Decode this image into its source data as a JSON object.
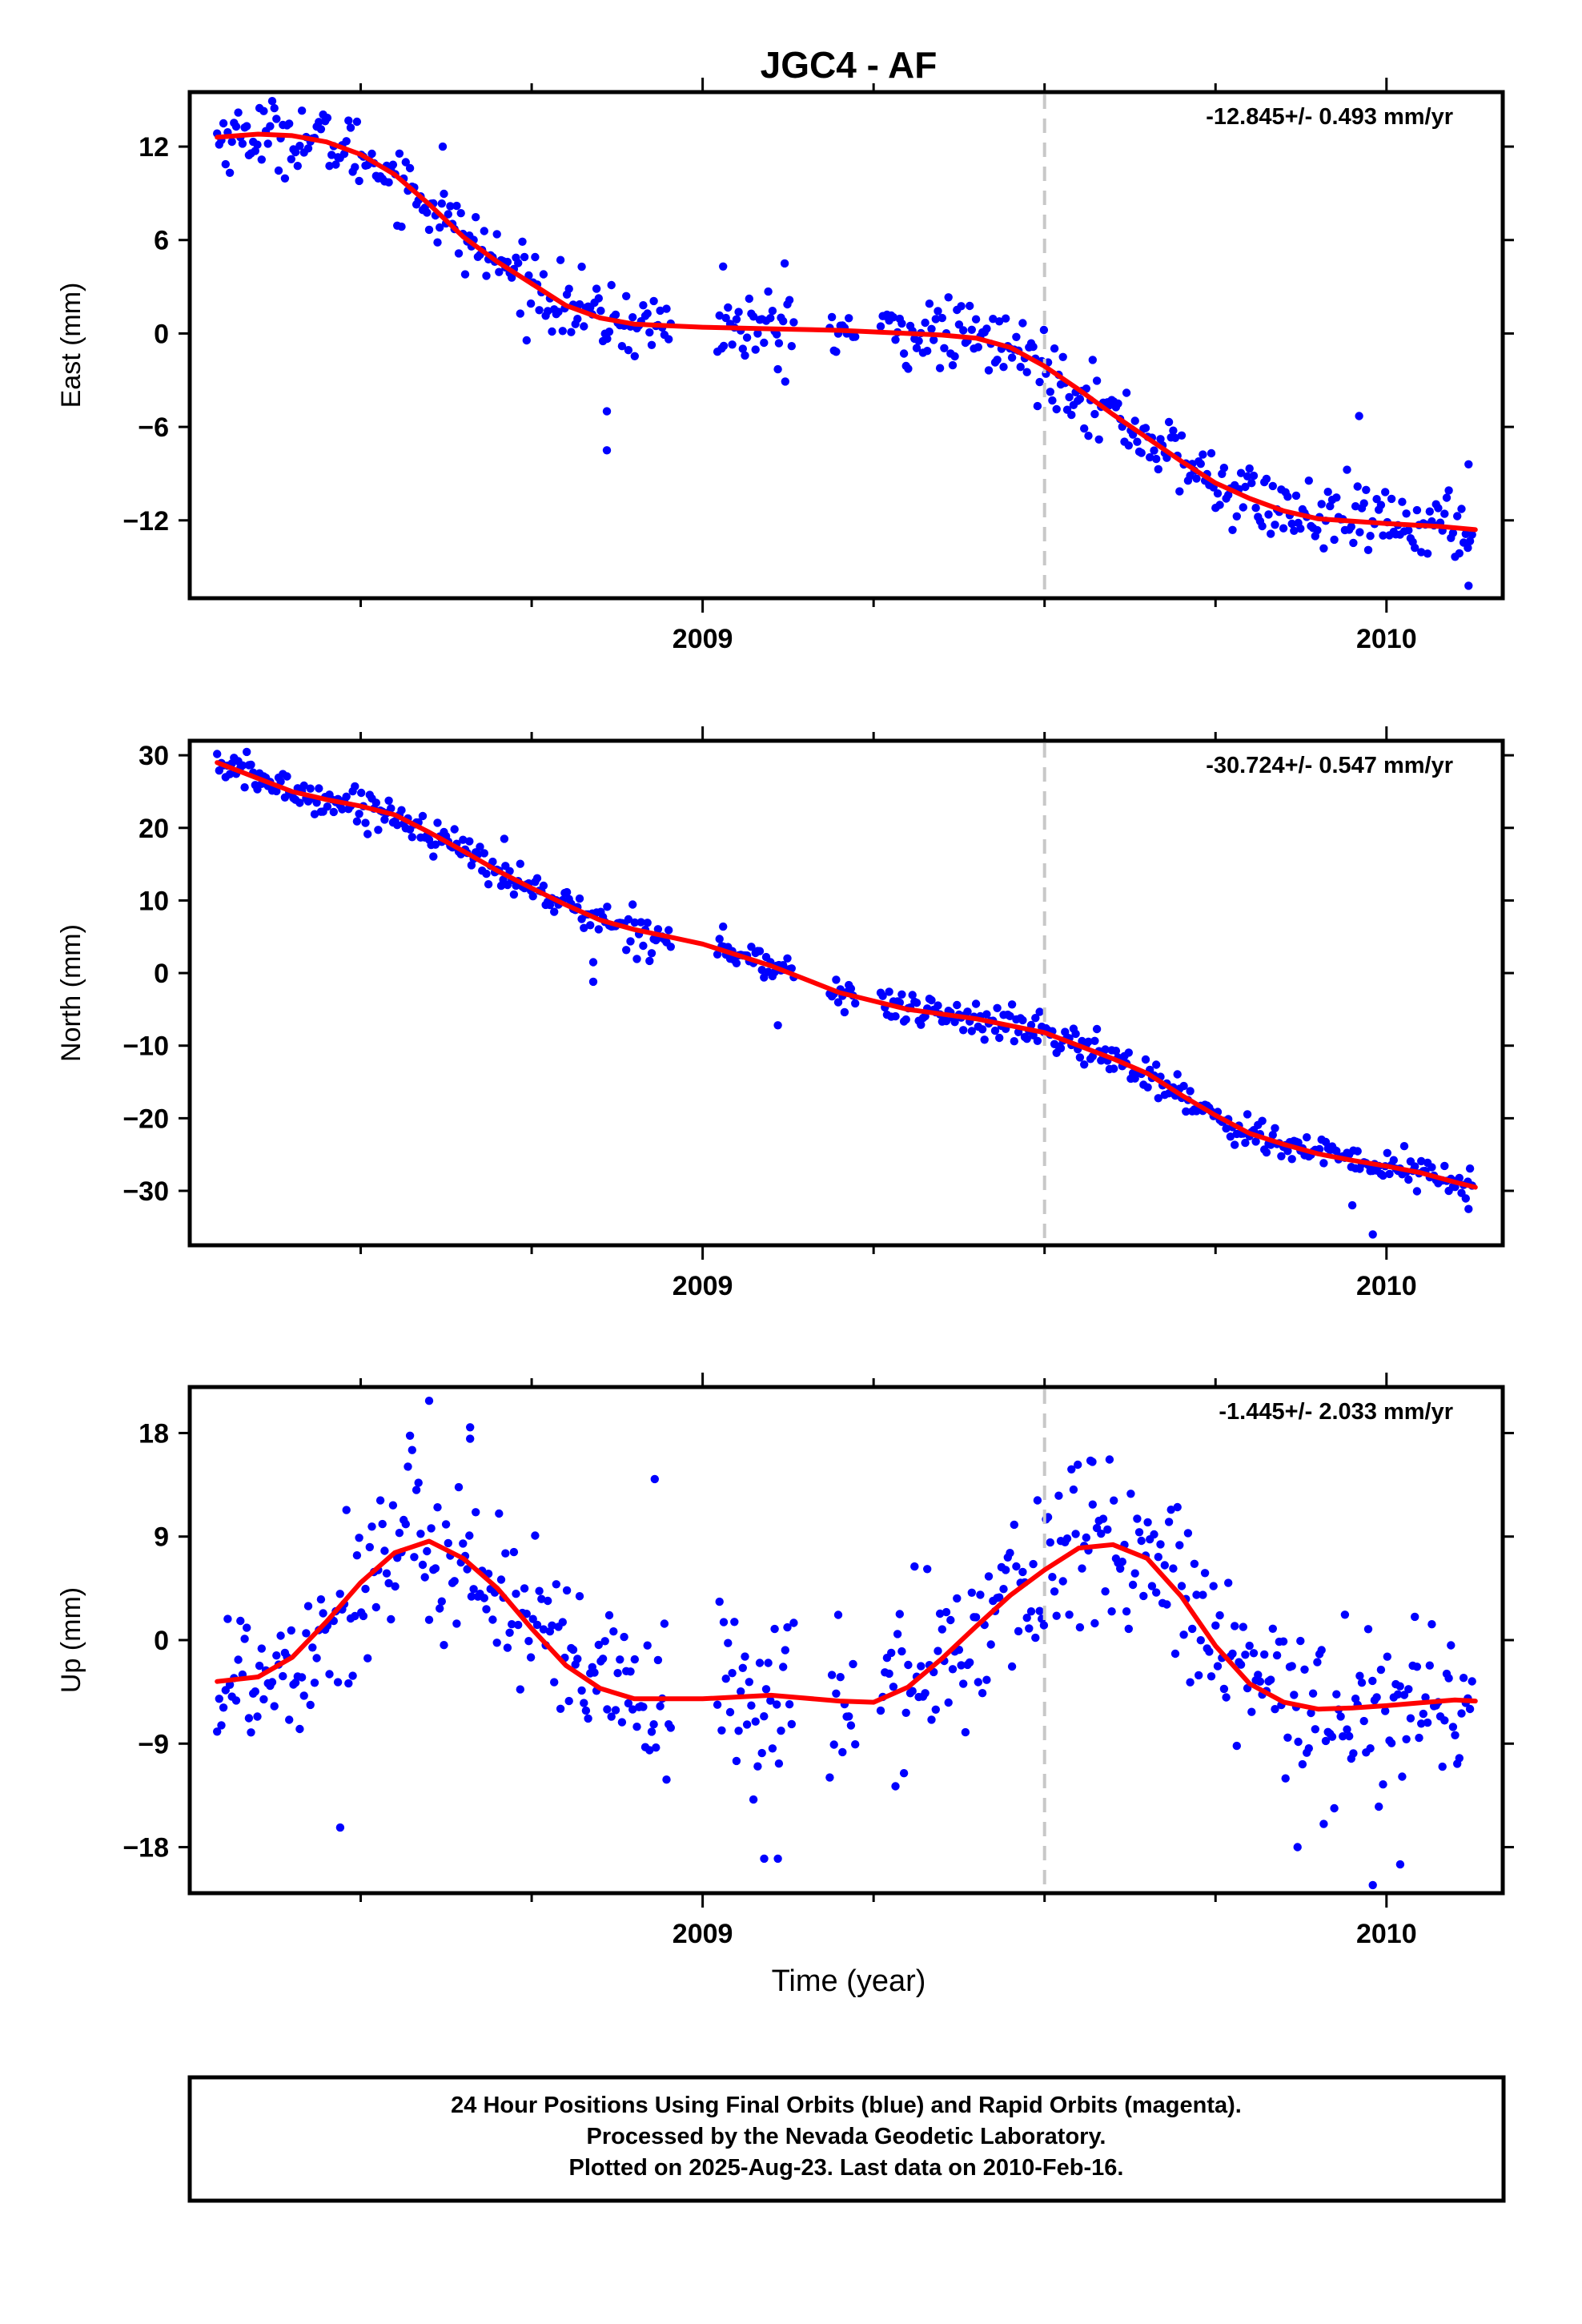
{
  "title": "JGC4 - AF",
  "xlabel": "Time (year)",
  "footer": [
    "24 Hour Positions Using Final Orbits (blue) and Rapid Orbits (magenta).",
    "Processed by the Nevada Geodetic Laboratory.",
    "Plotted on 2025-Aug-23. Last data on 2010-Feb-16."
  ],
  "colors": {
    "final_orbits": "#0000ff",
    "rapid_orbits": "#ff00ff",
    "fit": "#ff0000",
    "event_line": "#c8c8c8"
  },
  "chart_data": [
    {
      "type": "scatter",
      "ylabel": "East (mm)",
      "rate_label": "-12.845+/- 0.493 mm/yr",
      "xlim": [
        2008.25,
        2010.17
      ],
      "ylim": [
        -17,
        15.5
      ],
      "yticks": [
        12,
        6,
        0,
        -6,
        -12
      ],
      "xticks": [
        2009,
        2010
      ],
      "event_line_x": 2009.5,
      "grid": false,
      "fit": {
        "x": [
          2008.29,
          2008.35,
          2008.4,
          2008.45,
          2008.5,
          2008.55,
          2008.6,
          2008.65,
          2008.7,
          2008.75,
          2008.8,
          2008.85,
          2008.9,
          2008.95,
          2009.0,
          2009.1,
          2009.2,
          2009.3,
          2009.35,
          2009.4,
          2009.45,
          2009.5,
          2009.55,
          2009.6,
          2009.65,
          2009.7,
          2009.75,
          2009.8,
          2009.85,
          2009.9,
          2010.0,
          2010.08,
          2010.13
        ],
        "y": [
          12.6,
          12.8,
          12.7,
          12.3,
          11.5,
          10.2,
          8.3,
          6.2,
          4.6,
          3.2,
          1.8,
          1.0,
          0.6,
          0.5,
          0.4,
          0.3,
          0.2,
          0.0,
          -0.1,
          -0.3,
          -0.9,
          -2.1,
          -3.6,
          -5.2,
          -6.7,
          -8.2,
          -9.6,
          -10.6,
          -11.4,
          -11.9,
          -12.2,
          -12.4,
          -12.6
        ]
      },
      "scatter": {
        "noise": 1.1,
        "outliers": [
          [
            2008.86,
            -7.5
          ],
          [
            2008.86,
            -5.0
          ],
          [
            2008.62,
            12.0
          ],
          [
            2009.03,
            4.3
          ],
          [
            2009.12,
            4.5
          ],
          [
            2009.96,
            -5.3
          ],
          [
            2010.12,
            -16.2
          ],
          [
            2010.12,
            -8.4
          ],
          [
            2009.11,
            -2.3
          ]
        ]
      }
    },
    {
      "type": "scatter",
      "ylabel": "North (mm)",
      "rate_label": "-30.724+/- 0.547 mm/yr",
      "xlim": [
        2008.25,
        2010.17
      ],
      "ylim": [
        -37.5,
        32
      ],
      "yticks": [
        30,
        20,
        10,
        0,
        -10,
        -20,
        -30
      ],
      "xticks": [
        2009,
        2010
      ],
      "event_line_x": 2009.5,
      "grid": false,
      "fit": {
        "x": [
          2008.29,
          2008.35,
          2008.4,
          2008.45,
          2008.5,
          2008.55,
          2008.6,
          2008.65,
          2008.7,
          2008.75,
          2008.8,
          2008.85,
          2008.9,
          2008.95,
          2009.0,
          2009.1,
          2009.2,
          2009.3,
          2009.4,
          2009.5,
          2009.55,
          2009.6,
          2009.65,
          2009.7,
          2009.75,
          2009.8,
          2009.85,
          2009.9,
          2009.95,
          2010.0,
          2010.05,
          2010.1,
          2010.13
        ],
        "y": [
          29.0,
          26.8,
          25.0,
          23.9,
          23.0,
          21.8,
          19.4,
          16.8,
          14.1,
          11.7,
          9.4,
          7.3,
          6.0,
          5.0,
          4.0,
          1.0,
          -2.7,
          -5.0,
          -6.3,
          -8.2,
          -10.0,
          -11.8,
          -13.8,
          -16.8,
          -19.6,
          -22.1,
          -23.6,
          -24.9,
          -25.8,
          -26.6,
          -27.5,
          -28.8,
          -29.5
        ]
      },
      "scatter": {
        "noise": 1.2,
        "outliers": [
          [
            2008.84,
            -1.2
          ],
          [
            2008.84,
            1.5
          ],
          [
            2009.11,
            -7.2
          ],
          [
            2009.98,
            -36.0
          ],
          [
            2010.12,
            -32.5
          ],
          [
            2009.95,
            -32.0
          ],
          [
            2008.71,
            18.5
          ],
          [
            2009.03,
            6.4
          ]
        ]
      }
    },
    {
      "type": "scatter",
      "ylabel": "Up (mm)",
      "rate_label": "-1.445+/- 2.033 mm/yr",
      "xlim": [
        2008.25,
        2010.17
      ],
      "ylim": [
        -22,
        22
      ],
      "yticks": [
        18,
        9,
        0,
        -9,
        -18
      ],
      "xticks": [
        2009,
        2010
      ],
      "event_line_x": 2009.5,
      "grid": false,
      "fit": {
        "x": [
          2008.29,
          2008.35,
          2008.4,
          2008.45,
          2008.5,
          2008.55,
          2008.6,
          2008.65,
          2008.7,
          2008.75,
          2008.8,
          2008.85,
          2008.9,
          2009.0,
          2009.1,
          2009.2,
          2009.25,
          2009.3,
          2009.35,
          2009.4,
          2009.45,
          2009.5,
          2009.55,
          2009.6,
          2009.65,
          2009.7,
          2009.75,
          2009.8,
          2009.85,
          2009.9,
          2009.95,
          2010.0,
          2010.1,
          2010.13
        ],
        "y": [
          -3.6,
          -3.2,
          -1.5,
          1.6,
          5.0,
          7.6,
          8.6,
          7.1,
          4.5,
          1.0,
          -2.2,
          -4.2,
          -5.1,
          -5.1,
          -4.8,
          -5.3,
          -5.4,
          -4.1,
          -1.6,
          1.2,
          3.9,
          6.1,
          8.0,
          8.3,
          7.1,
          3.8,
          -0.5,
          -3.8,
          -5.4,
          -6.0,
          -5.9,
          -5.7,
          -5.2,
          -5.3
        ]
      },
      "scatter": {
        "noise": 3.8,
        "outliers": [
          [
            2008.6,
            20.8
          ],
          [
            2008.66,
            18.5
          ],
          [
            2008.66,
            17.5
          ],
          [
            2008.93,
            14.0
          ],
          [
            2008.47,
            -16.3
          ],
          [
            2009.09,
            -19.0
          ],
          [
            2009.11,
            -19.0
          ],
          [
            2009.98,
            -21.3
          ],
          [
            2010.02,
            -19.5
          ],
          [
            2009.87,
            -18.0
          ],
          [
            2009.57,
            15.5
          ]
        ]
      }
    }
  ]
}
